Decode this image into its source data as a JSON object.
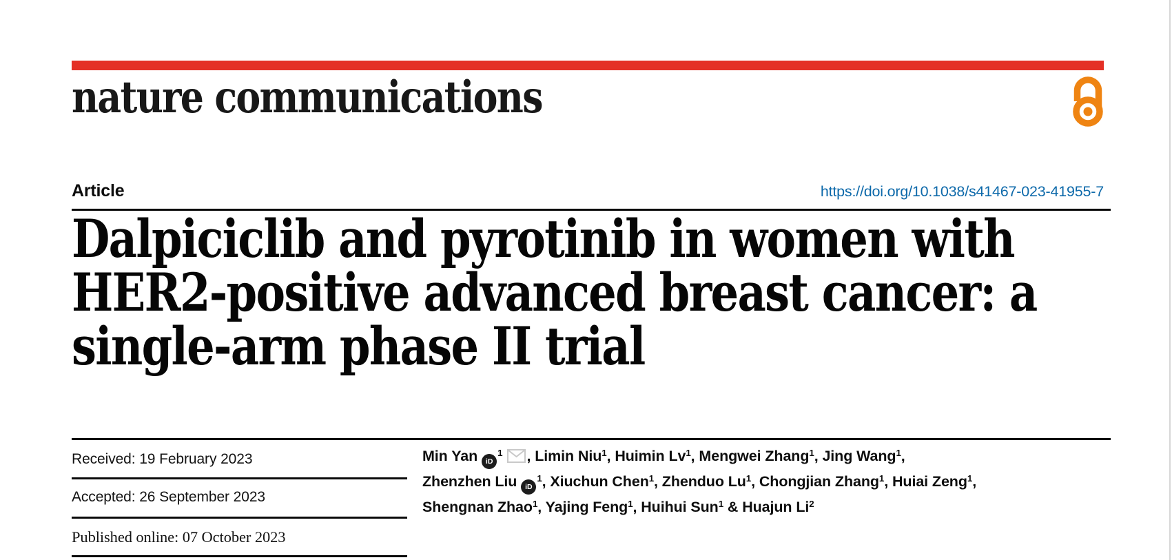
{
  "header": {
    "brand": "nature communications"
  },
  "open_access": {
    "name": "open-access"
  },
  "article_bar": {
    "label": "Article",
    "doi": "https://doi.org/10.1038/s41467-023-41955-7"
  },
  "title": {
    "line1": "Dalpiciclib and pyrotinib in women with",
    "line2": "HER2-positive advanced breast cancer: a",
    "line3": "single-arm phase II trial"
  },
  "dates": {
    "received": "Received: 19 February 2023",
    "accepted": "Accepted: 26 September 2023",
    "published": "Published online: 07 October 2023"
  },
  "authors": {
    "lines": [
      [
        {
          "text": "Min Yan",
          "orcid": true,
          "sup": "1",
          "mail": true,
          "after": ", "
        },
        {
          "text": "Limin Niu",
          "sup": "1",
          "after": ", "
        },
        {
          "text": "Huimin Lv",
          "sup": "1",
          "after": ", "
        },
        {
          "text": "Mengwei Zhang",
          "sup": "1",
          "after": ", "
        },
        {
          "text": "Jing Wang",
          "sup": "1",
          "after": ","
        }
      ],
      [
        {
          "text": "Zhenzhen Liu",
          "orcid": true,
          "sup": "1",
          "after": ", "
        },
        {
          "text": "Xiuchun Chen",
          "sup": "1",
          "after": ", "
        },
        {
          "text": "Zhenduo Lu",
          "sup": "1",
          "after": ", "
        },
        {
          "text": "Chongjian Zhang",
          "sup": "1",
          "after": ", "
        },
        {
          "text": "Huiai Zeng",
          "sup": "1",
          "after": ","
        }
      ],
      [
        {
          "text": "Shengnan Zhao",
          "sup": "1",
          "after": ", "
        },
        {
          "text": "Yajing Feng",
          "sup": "1",
          "after": ", "
        },
        {
          "text": "Huihui Sun",
          "sup": "1",
          "after": " "
        },
        {
          "text": "& Huajun Li",
          "sup": "2",
          "after": ""
        }
      ]
    ]
  },
  "icons": {
    "orcid_text": "iD"
  },
  "colors": {
    "accent_red": "#e43026",
    "link_blue": "#0d69aa",
    "oa_orange": "#ef8412",
    "envelope_gray": "#c9c9c9"
  }
}
